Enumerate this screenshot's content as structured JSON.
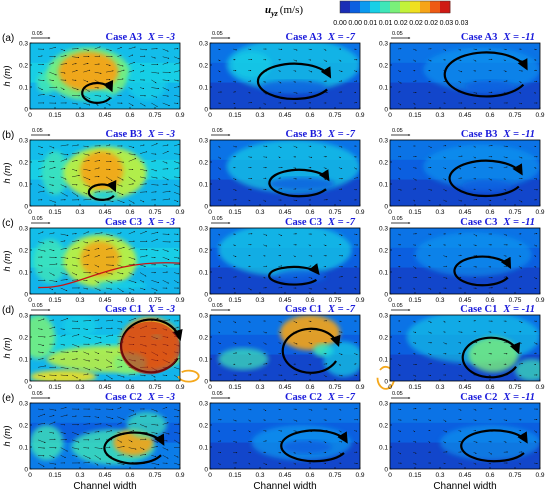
{
  "colorbar": {
    "label_main": "u",
    "label_sub": "yz",
    "label_unit": "(m/s)",
    "ticks": [
      "0.00",
      "0.00",
      "0.01",
      "0.01",
      "0.02",
      "0.02",
      "0.02",
      "0.03",
      "0.03"
    ],
    "colors": [
      "#1a2db5",
      "#0b5fe0",
      "#0b9af0",
      "#18cfe6",
      "#3fe6b8",
      "#7af07a",
      "#c2f23a",
      "#f0e020",
      "#f6a418",
      "#ee5a14",
      "#cf1a14"
    ]
  },
  "quiver_scale_label": "0.05",
  "panels": [
    {
      "letter": "(a)",
      "case": "Case A3",
      "x_values": [
        "X = -3",
        "X = -7",
        "X = -11"
      ]
    },
    {
      "letter": "(b)",
      "case": "Case B3",
      "x_values": [
        "X = -3",
        "X = -7",
        "X = -11"
      ]
    },
    {
      "letter": "(c)",
      "case": "Case C3",
      "x_values": [
        "X = -3",
        "X = -7",
        "X = -11"
      ]
    },
    {
      "letter": "(d)",
      "case": "Case C1",
      "x_values": [
        "X = -3",
        "X = -7",
        "X = -11"
      ]
    },
    {
      "letter": "(e)",
      "case": "Case C2",
      "x_values": [
        "X = -3",
        "X = -7",
        "X = -11"
      ]
    }
  ],
  "axes": {
    "xlabel": "Channel width",
    "ylabel": "h (m)",
    "xticks": [
      "0",
      "0.15",
      "0.3",
      "0.45",
      "0.6",
      "0.75",
      "0.9"
    ],
    "yticks": [
      "0",
      "0.1",
      "0.2",
      "0.3"
    ],
    "xlim": [
      0,
      0.9
    ],
    "ylim": [
      0,
      0.3
    ]
  },
  "colors": {
    "case_title": "#1a1adb",
    "vortex_black": "#000000",
    "vortex_orange": "#f5a81c",
    "vortex_red": "#c81414"
  },
  "chart_data": {
    "type": "heatmap",
    "variable": "uyz (m/s)",
    "color_scale_range": [
      0.0,
      0.035
    ],
    "rows": [
      "Case A3",
      "Case B3",
      "Case C3",
      "Case C1",
      "Case C2"
    ],
    "columns": [
      "X = -3",
      "X = -7",
      "X = -11"
    ],
    "peak_velocity_estimate": [
      [
        0.03,
        0.012,
        0.008
      ],
      [
        0.03,
        0.011,
        0.008
      ],
      [
        0.025,
        0.011,
        0.008
      ],
      [
        0.035,
        0.03,
        0.016
      ],
      [
        0.028,
        0.01,
        0.006
      ]
    ],
    "vortex_center_estimate": [
      {
        "case": "Case A3",
        "X": -3,
        "y": 0.4,
        "h": 0.07
      },
      {
        "case": "Case A3",
        "X": -7,
        "y": 0.5,
        "h": 0.12
      },
      {
        "case": "Case A3",
        "X": -11,
        "y": 0.57,
        "h": 0.15
      },
      {
        "case": "Case B3",
        "X": -3,
        "y": 0.43,
        "h": 0.06
      },
      {
        "case": "Case B3",
        "X": -7,
        "y": 0.53,
        "h": 0.1
      },
      {
        "case": "Case B3",
        "X": -11,
        "y": 0.57,
        "h": 0.12
      },
      {
        "case": "Case C3",
        "X": -7,
        "y": 0.5,
        "h": 0.08
      },
      {
        "case": "Case C3",
        "X": -11,
        "y": 0.55,
        "h": 0.1
      },
      {
        "case": "Case C1",
        "X": -3,
        "y": 0.72,
        "h": 0.15
      },
      {
        "case": "Case C1",
        "X": -7,
        "y": 0.6,
        "h": 0.13
      },
      {
        "case": "Case C1",
        "X": -11,
        "y": 0.6,
        "h": 0.1
      },
      {
        "case": "Case C2",
        "X": -3,
        "y": 0.62,
        "h": 0.09
      },
      {
        "case": "Case C2",
        "X": -7,
        "y": 0.62,
        "h": 0.1
      },
      {
        "case": "Case C2",
        "X": -11,
        "y": 0.62,
        "h": 0.1
      }
    ]
  }
}
